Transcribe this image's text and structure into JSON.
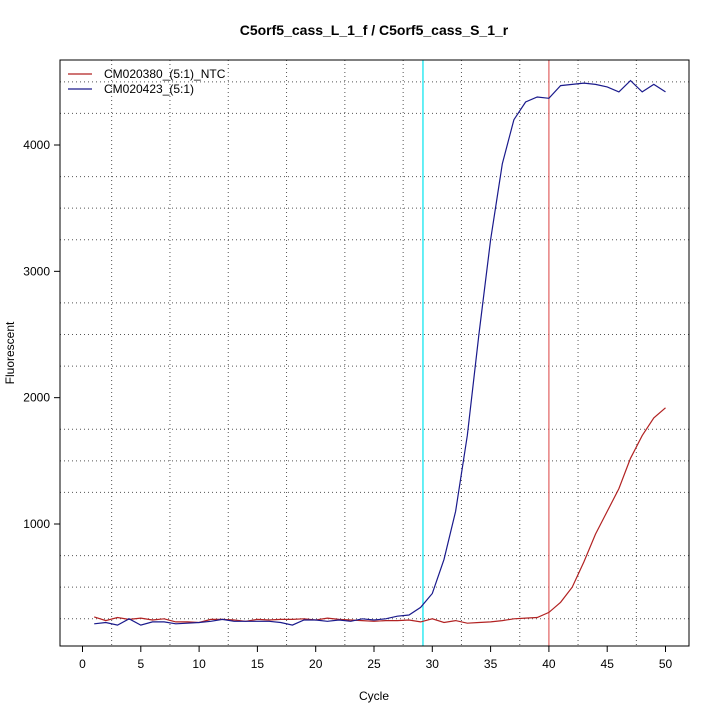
{
  "chart_data": {
    "type": "line",
    "title": "C5orf5_cass_L_1_f / C5orf5_cass_S_1_r",
    "xlabel": "Cycle",
    "ylabel": "Fluorescent",
    "xlim": [
      1,
      50
    ],
    "ylim": [
      200,
      4500
    ],
    "x_ticks": [
      0,
      5,
      10,
      15,
      20,
      25,
      30,
      35,
      40,
      45,
      50
    ],
    "y_ticks": [
      1000,
      2000,
      3000,
      4000
    ],
    "legend_position": "top-left",
    "grid": true,
    "threshold_lines": [
      {
        "x": 29.2,
        "color": "#00e5ee"
      },
      {
        "x": 40,
        "color": "#e06060"
      }
    ],
    "x": [
      1,
      2,
      3,
      4,
      5,
      6,
      7,
      8,
      9,
      10,
      11,
      12,
      13,
      14,
      15,
      16,
      17,
      18,
      19,
      20,
      21,
      22,
      23,
      24,
      25,
      26,
      27,
      28,
      29,
      30,
      31,
      32,
      33,
      34,
      35,
      36,
      37,
      38,
      39,
      40,
      41,
      42,
      43,
      44,
      45,
      46,
      47,
      48,
      49,
      50
    ],
    "series": [
      {
        "name": "CM020380_(5:1)_NTC",
        "color": "#b22222",
        "values": [
          265,
          235,
          260,
          245,
          255,
          240,
          250,
          225,
          225,
          220,
          245,
          245,
          240,
          230,
          245,
          240,
          245,
          245,
          250,
          240,
          255,
          245,
          240,
          235,
          230,
          235,
          235,
          240,
          225,
          250,
          220,
          235,
          215,
          220,
          225,
          235,
          250,
          255,
          260,
          300,
          380,
          500,
          700,
          920,
          1100,
          1280,
          1520,
          1700,
          1840,
          1920
        ]
      },
      {
        "name": "CM020423_(5:1)",
        "color": "#1a1a8c",
        "values": [
          210,
          220,
          200,
          250,
          200,
          225,
          225,
          210,
          215,
          220,
          230,
          245,
          230,
          230,
          230,
          230,
          220,
          200,
          240,
          240,
          230,
          240,
          230,
          250,
          240,
          250,
          270,
          280,
          340,
          450,
          720,
          1100,
          1700,
          2500,
          3250,
          3850,
          4200,
          4340,
          4380,
          4370,
          4470,
          4480,
          4490,
          4480,
          4460,
          4420,
          4510,
          4420,
          4480,
          4420
        ]
      }
    ]
  }
}
